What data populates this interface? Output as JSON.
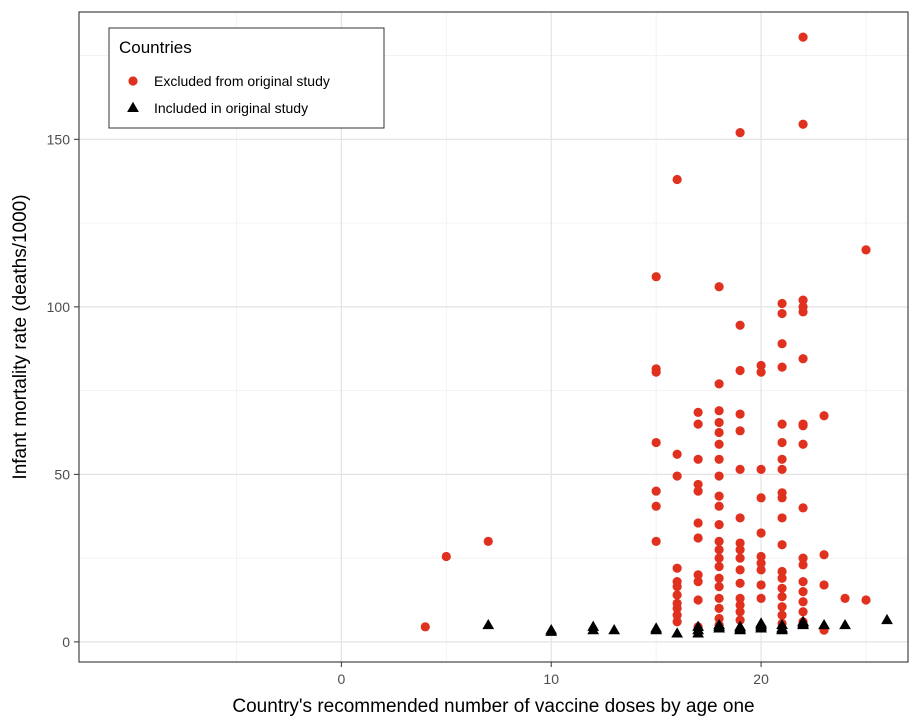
{
  "chart_data": {
    "type": "scatter",
    "xlabel": "Country's recommended number of vaccine doses by age one",
    "ylabel": "Infant mortality rate (deaths/1000)",
    "xlim": [
      -12.5,
      27
    ],
    "ylim": [
      -6,
      188
    ],
    "x_ticks": [
      0,
      10,
      20
    ],
    "y_ticks": [
      0,
      50,
      100,
      150
    ],
    "grid": true,
    "legend": {
      "title": "Countries",
      "position": "top-left"
    },
    "series": [
      {
        "name": "Excluded from original study",
        "marker": "circle",
        "color": "#e0301e",
        "points": [
          [
            4,
            4.5
          ],
          [
            5,
            25.5
          ],
          [
            7,
            30
          ],
          [
            15,
            109
          ],
          [
            15,
            81.5
          ],
          [
            15,
            80.5
          ],
          [
            15,
            59.5
          ],
          [
            15,
            45
          ],
          [
            15,
            40.5
          ],
          [
            15,
            30
          ],
          [
            16,
            138
          ],
          [
            16,
            56
          ],
          [
            16,
            49.5
          ],
          [
            16,
            22
          ],
          [
            16,
            18
          ],
          [
            16,
            16.5
          ],
          [
            16,
            14
          ],
          [
            16,
            11.5
          ],
          [
            16,
            10
          ],
          [
            16,
            8
          ],
          [
            16,
            6
          ],
          [
            17,
            68.5
          ],
          [
            17,
            65
          ],
          [
            17,
            54.5
          ],
          [
            17,
            47
          ],
          [
            17,
            45
          ],
          [
            17,
            35.5
          ],
          [
            17,
            31
          ],
          [
            17,
            20
          ],
          [
            17,
            18
          ],
          [
            17,
            12.5
          ],
          [
            17,
            4.5
          ],
          [
            18,
            106
          ],
          [
            18,
            77
          ],
          [
            18,
            69
          ],
          [
            18,
            65.5
          ],
          [
            18,
            62.5
          ],
          [
            18,
            59
          ],
          [
            18,
            54.5
          ],
          [
            18,
            49.5
          ],
          [
            18,
            43.5
          ],
          [
            18,
            40.5
          ],
          [
            18,
            35
          ],
          [
            18,
            30
          ],
          [
            18,
            27.5
          ],
          [
            18,
            25
          ],
          [
            18,
            22.5
          ],
          [
            18,
            19
          ],
          [
            18,
            16.5
          ],
          [
            18,
            13
          ],
          [
            18,
            10
          ],
          [
            18,
            7
          ],
          [
            18,
            5
          ],
          [
            19,
            152
          ],
          [
            19,
            94.5
          ],
          [
            19,
            81
          ],
          [
            19,
            68
          ],
          [
            19,
            63
          ],
          [
            19,
            51.5
          ],
          [
            19,
            37
          ],
          [
            19,
            29.5
          ],
          [
            19,
            27.5
          ],
          [
            19,
            25
          ],
          [
            19,
            21.5
          ],
          [
            19,
            17.5
          ],
          [
            19,
            13
          ],
          [
            19,
            11
          ],
          [
            19,
            9
          ],
          [
            19,
            6.5
          ],
          [
            20,
            82.5
          ],
          [
            20,
            80.5
          ],
          [
            20,
            51.5
          ],
          [
            20,
            43
          ],
          [
            20,
            32.5
          ],
          [
            20,
            25.5
          ],
          [
            20,
            23.5
          ],
          [
            20,
            21.5
          ],
          [
            20,
            17
          ],
          [
            20,
            13
          ],
          [
            21,
            101
          ],
          [
            21,
            98
          ],
          [
            21,
            89
          ],
          [
            21,
            82
          ],
          [
            21,
            65
          ],
          [
            21,
            59.5
          ],
          [
            21,
            54.5
          ],
          [
            21,
            51.5
          ],
          [
            21,
            44.5
          ],
          [
            21,
            43
          ],
          [
            21,
            37
          ],
          [
            21,
            29
          ],
          [
            21,
            21
          ],
          [
            21,
            19
          ],
          [
            21,
            16
          ],
          [
            21,
            13.5
          ],
          [
            21,
            10.5
          ],
          [
            21,
            8
          ],
          [
            21,
            5.5
          ],
          [
            22,
            180.5
          ],
          [
            22,
            154.5
          ],
          [
            22,
            102
          ],
          [
            22,
            100
          ],
          [
            22,
            98.5
          ],
          [
            22,
            84.5
          ],
          [
            22,
            65
          ],
          [
            22,
            64.5
          ],
          [
            22,
            59
          ],
          [
            22,
            40
          ],
          [
            22,
            25
          ],
          [
            22,
            23
          ],
          [
            22,
            18
          ],
          [
            22,
            15
          ],
          [
            22,
            12
          ],
          [
            22,
            9
          ],
          [
            22,
            6
          ],
          [
            23,
            67.5
          ],
          [
            23,
            26
          ],
          [
            23,
            17
          ],
          [
            23,
            4
          ],
          [
            23,
            3.5
          ],
          [
            24,
            13
          ],
          [
            25,
            12.5
          ],
          [
            25,
            117
          ]
        ]
      },
      {
        "name": "Included in original study",
        "marker": "triangle",
        "color": "#000000",
        "points": [
          [
            7,
            5
          ],
          [
            10,
            3.5
          ],
          [
            10,
            3
          ],
          [
            12,
            4.5
          ],
          [
            12,
            3.5
          ],
          [
            13,
            3.5
          ],
          [
            15,
            4
          ],
          [
            15,
            3.5
          ],
          [
            16,
            2.5
          ],
          [
            17,
            4.5
          ],
          [
            17,
            3.5
          ],
          [
            17,
            2.5
          ],
          [
            18,
            5
          ],
          [
            18,
            4.5
          ],
          [
            18,
            4
          ],
          [
            19,
            4.5
          ],
          [
            19,
            4
          ],
          [
            19,
            3.5
          ],
          [
            20,
            5.5
          ],
          [
            20,
            5
          ],
          [
            20,
            4.5
          ],
          [
            20,
            4
          ],
          [
            21,
            5
          ],
          [
            21,
            4
          ],
          [
            21,
            3.5
          ],
          [
            22,
            6
          ],
          [
            22,
            5.5
          ],
          [
            22,
            5
          ],
          [
            23,
            5
          ],
          [
            24,
            5
          ],
          [
            26,
            6.5
          ]
        ]
      }
    ]
  }
}
